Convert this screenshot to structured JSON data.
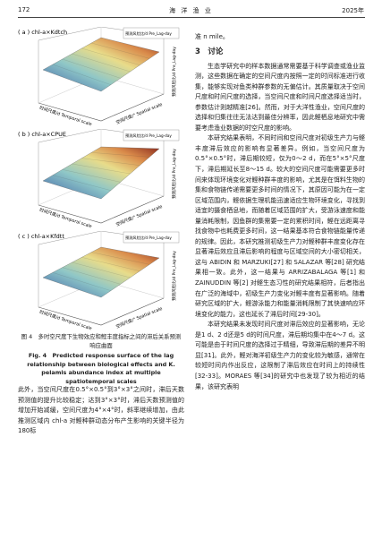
{
  "header": {
    "page_number": "172",
    "journal": "海 洋 渔 业",
    "year": "2025年"
  },
  "figure": {
    "panels": [
      {
        "label": "( a ) chl-a×Kdtch"
      },
      {
        "label": "( b ) chl-a×CPUE"
      },
      {
        "label": "( c ) chl-a×Kfdtt"
      }
    ],
    "legend_title": "预测风险比/d Pre_Lag-day",
    "z_label": "预测风险比/d Pre_Lag-day",
    "x_label": "时间尺度/d Temporal scale",
    "y_label": "空间尺度/° Spatial scale",
    "caption_zh": "图 4　多时空尺度下生物效应和鲣丰度指标之间的滞后关系预测响应曲面",
    "caption_en": "Fig. 4　Predicted response surface of the lag relationship between biological effects and K. pelamis abundance index at multiple spatiotemporal scales"
  },
  "left_text": [
    "此外，当空间尺度在0.5°×0.5°到3°×3°之间时，滞后天数预测值的提升比较稳定；达到3°×3°时，滞后天数预测值的增加开始减缓，空间尺度为4°×4°时，斜率继续增加，由此推测区域内 chl-a 对鲣种群动态分布产生影响的关键半径为180标"
  ],
  "right_text": {
    "continuation": "准 n mile。",
    "section_title": "3　讨论",
    "paragraphs": [
      "生态学研究中的样本数据通常需要基于科学调查或渔业监测，这些数据在确定的空间尺度内按照一定的时间标准进行收集，能够实现对鱼类种群参数的无偏估计。其质量取决于空间尺度和时间尺度的选择，当空间尺度和时间尺度选择适当时，参数估计则越精准[26]。然而，对于大洋性渔业，空间尺度的选择和归集往往无法达到最佳分辨率，因此鲣栖息地研究中需要考虑渔业数据的时空尺度的影响。",
      "本研究结果表明，不同时间和空间尺度对初级生产力与鲣丰度滞后效应的影响有显著差异。例如，当空间尺度为0.5°×0.5°时，滞后期较短，仅为0～2 d，而在5°×5°尺度下，滞后期延长至8～15 d。较大的空间尺度可能需要更多时间来体现环境变化对鲣种群丰度的影响，尤其是在饵料生物的集和食物链传递需要更多时间的情况下，其原因可能为在一定区域范围内，鲣依据生理机能迅速适应生物环境变化，寻找到适宜的摄食栖息地，而随着区域范围的扩大，受游泳速度和能量消耗限制，因鱼群的集需要一定的累积时间，鲣在远距离寻找食物中也耗费更多时间，这一结果基本符合食物链能量传递的规律。因此，本研究推测初级生产力对鲣种群丰度变化存在显著滞后效应且滞后影响的程度与区域空间的大小密切相关，这与 ABIDIN 和 MARZUKI[27] 和 SALAZAR 等[28] 研究结果相一致。此外，这一结果与 ARRIZABALAGA 等[1] 和 ZAINUDDIN 等[2] 对鲣生态习性的研究结果相符，后者指出在广泛的海域中，初级生产力变化对鲣丰度有显著影响。随着研究区域的扩大，鲣游泳能力和能量消耗限制了其快速响应环境变化的能力，这也延长了滞后时间[29-30]。",
      "本研究结果未发现时间尺度对滞后效应的显著影响，无论是1 d、2 d还是5 d的时间尺度，滞后期均集中在4～7 d。这可能是由于时间尺度的选择过于精细，导致滞后期的差异不明显[31]。此外，鲣对海洋初级生产力的变化较为敏感，通常在较短时间内作出反应，这限制了滞后效应在时间上的持续性[32-33]。MORAES 等[34]的研究中也发现了较为相近的结果，该研究表明"
    ]
  }
}
